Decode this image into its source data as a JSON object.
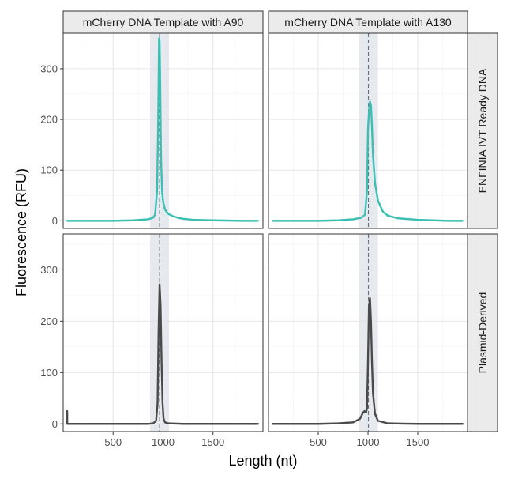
{
  "chart_data": {
    "type": "line",
    "xlabel": "Length (nt)",
    "ylabel": "Fluorescence (RFU)",
    "xlim": [
      0,
      2000
    ],
    "ylim": [
      -15,
      370
    ],
    "x_ticks": [
      500,
      1000,
      1500
    ],
    "y_ticks": [
      0,
      100,
      200,
      300
    ],
    "grid": true,
    "column_strips": [
      "mCherry DNA Template with A90",
      "mCherry DNA Template with A130"
    ],
    "row_strips": [
      "ENFINIA IVT Ready DNA",
      "Plasmid-Derived"
    ],
    "row_colors": [
      "#3bbfb2",
      "#4a4a4a"
    ],
    "panels": [
      {
        "row": 0,
        "col": 0,
        "expected_length": 965,
        "band": [
          870,
          1060
        ],
        "x": [
          40,
          300,
          500,
          700,
          850,
          900,
          920,
          940,
          950,
          960,
          965,
          970,
          980,
          990,
          1000,
          1020,
          1050,
          1100,
          1150,
          1200,
          1300,
          1500,
          1800,
          1950
        ],
        "y": [
          0,
          0,
          0,
          1,
          3,
          6,
          12,
          60,
          180,
          360,
          355,
          290,
          120,
          60,
          38,
          22,
          14,
          9,
          6,
          4,
          2,
          1,
          0,
          0
        ]
      },
      {
        "row": 0,
        "col": 1,
        "expected_length": 1005,
        "band": [
          910,
          1100
        ],
        "x": [
          40,
          300,
          500,
          700,
          850,
          930,
          970,
          990,
          1000,
          1010,
          1020,
          1030,
          1040,
          1050,
          1070,
          1100,
          1150,
          1200,
          1300,
          1500,
          1800,
          1950
        ],
        "y": [
          0,
          0,
          0,
          1,
          3,
          6,
          12,
          60,
          180,
          215,
          235,
          228,
          185,
          130,
          75,
          40,
          18,
          10,
          5,
          2,
          0,
          0
        ]
      },
      {
        "row": 1,
        "col": 0,
        "expected_length": 965,
        "band": [
          870,
          1060
        ],
        "x": [
          40,
          41,
          45,
          300,
          500,
          700,
          850,
          900,
          930,
          945,
          955,
          965,
          975,
          985,
          995,
          1005,
          1020,
          1050,
          1200,
          1500,
          1800,
          1950
        ],
        "y": [
          25,
          0,
          0,
          0,
          0,
          0,
          0,
          1,
          6,
          40,
          180,
          272,
          230,
          120,
          40,
          10,
          3,
          1,
          0,
          0,
          0,
          0
        ]
      },
      {
        "row": 1,
        "col": 1,
        "expected_length": 1005,
        "band": [
          910,
          1100
        ],
        "x": [
          40,
          300,
          500,
          700,
          850,
          920,
          950,
          965,
          980,
          990,
          1000,
          1010,
          1020,
          1030,
          1040,
          1050,
          1070,
          1100,
          1200,
          1500,
          1800,
          1950
        ],
        "y": [
          0,
          0,
          0,
          1,
          3,
          10,
          22,
          25,
          22,
          30,
          120,
          230,
          245,
          200,
          120,
          60,
          20,
          6,
          1,
          0,
          0,
          0
        ]
      }
    ]
  }
}
